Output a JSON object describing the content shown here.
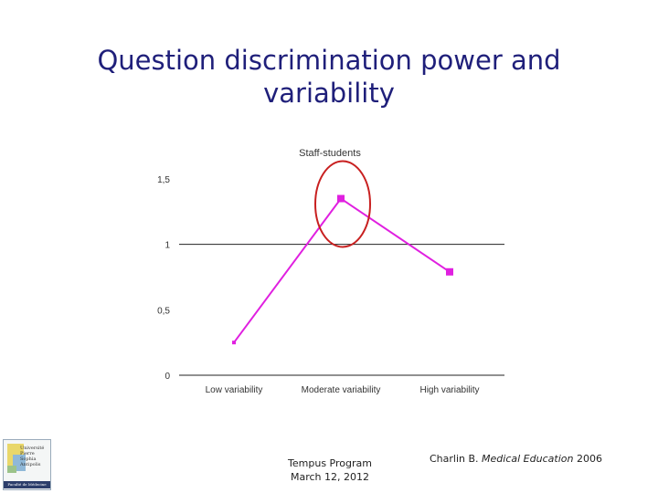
{
  "slide": {
    "title_line1": "Question discrimination power and",
    "title_line2": "variability",
    "footer_line1": "Tempus Program",
    "footer_line2": "March 12, 2012",
    "citation_author": "Charlin B. ",
    "citation_journal": "Medical Education",
    "citation_year": " 2006"
  },
  "logo": {
    "line1": "Université",
    "line2": "Pierre",
    "line3": "Sophia Antipolis",
    "bottom": "Faculté de Médecine"
  },
  "chart_data": {
    "type": "line",
    "title": "Staff-students",
    "categories": [
      "Low variability",
      "Moderate variability",
      "High variability"
    ],
    "series": [
      {
        "values": [
          0.25,
          1.35,
          0.79
        ],
        "color": "#e020e0"
      }
    ],
    "ylim": [
      0,
      1.5
    ],
    "yticks": [
      0,
      0.5,
      1,
      1.5
    ],
    "ytick_labels": [
      "0",
      "0,5",
      "1",
      "1,5"
    ],
    "annotation": {
      "type": "circle",
      "category_index": 1,
      "color": "#c82020"
    },
    "grid": "horizontal at 0 and 1"
  }
}
